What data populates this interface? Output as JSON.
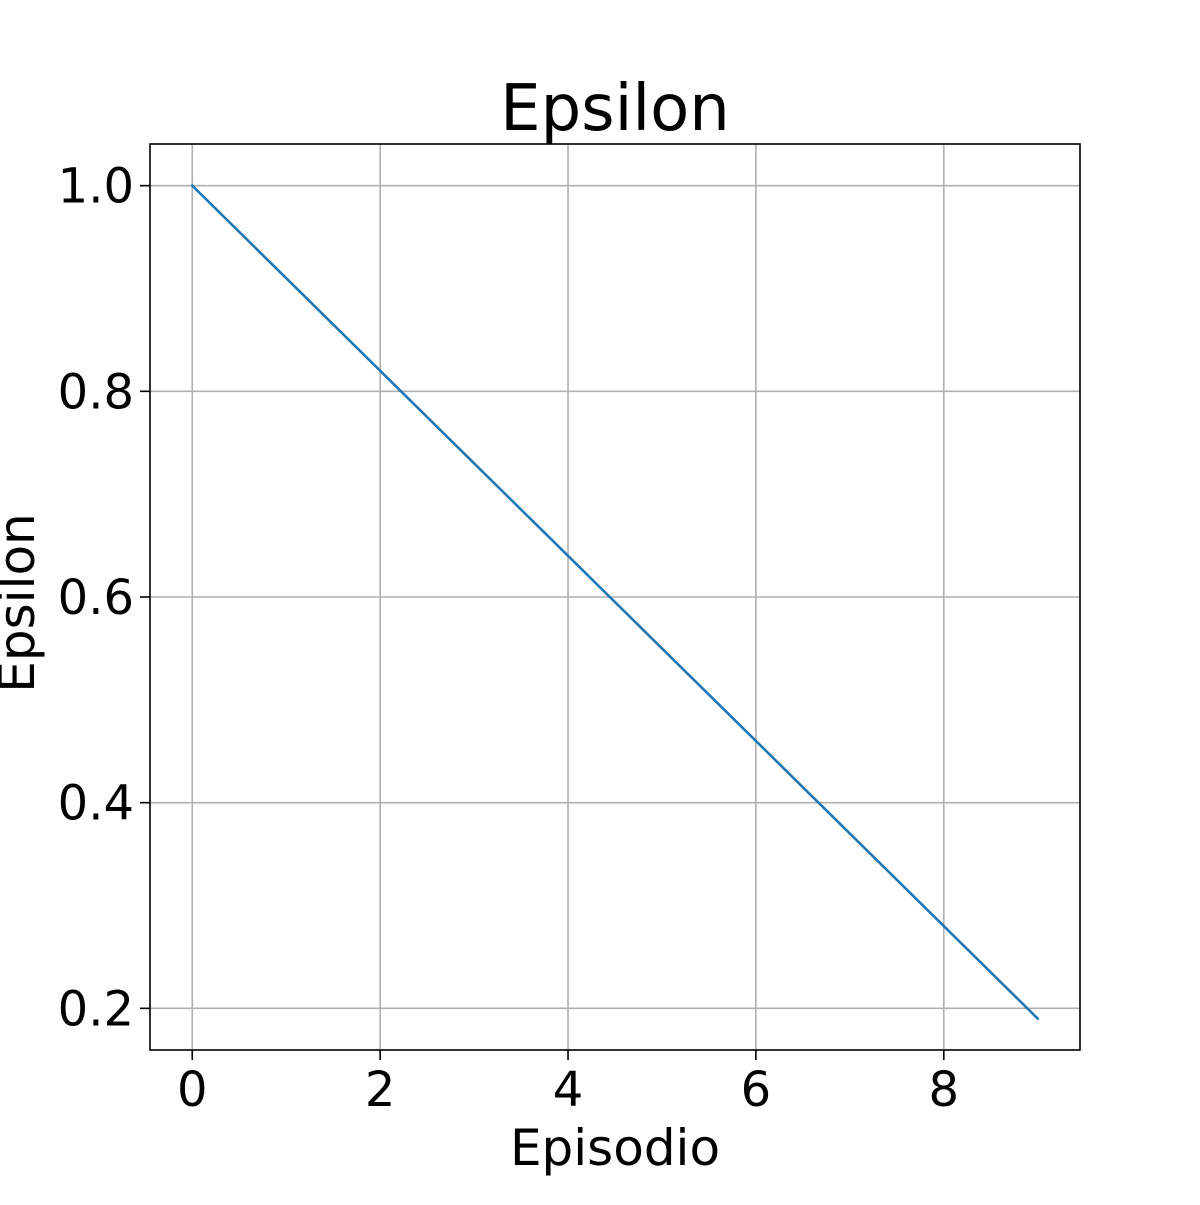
{
  "chart_data": {
    "type": "line",
    "title": "Epsilon",
    "xlabel": "Episodio",
    "ylabel": "Epsilon",
    "xlim": [
      -0.45,
      9.45
    ],
    "ylim": [
      0.1595,
      1.0405
    ],
    "x_ticks": [
      0,
      2,
      4,
      6,
      8
    ],
    "x_tick_labels": [
      "0",
      "2",
      "4",
      "6",
      "8"
    ],
    "y_ticks": [
      0.2,
      0.4,
      0.6,
      0.8,
      1.0
    ],
    "y_tick_labels": [
      "0.2",
      "0.4",
      "0.6",
      "0.8",
      "1.0"
    ],
    "grid": true,
    "series": [
      {
        "x": [
          0,
          1,
          2,
          3,
          4,
          5,
          6,
          7,
          8,
          9
        ],
        "values": [
          1.0,
          0.91,
          0.82,
          0.73,
          0.64,
          0.55,
          0.46,
          0.37,
          0.28,
          0.19
        ],
        "color": "#1f77b4"
      }
    ]
  }
}
